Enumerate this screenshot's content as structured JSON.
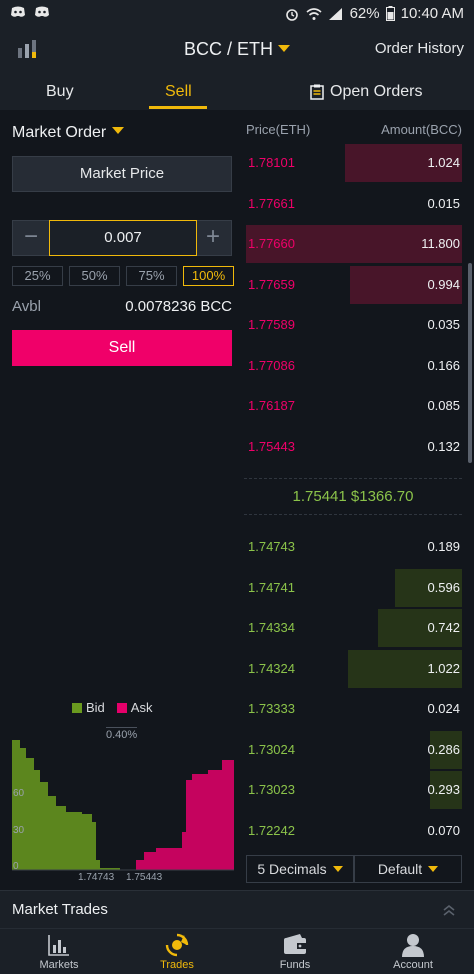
{
  "statusbar": {
    "battery": "62%",
    "time": "10:40 AM"
  },
  "header": {
    "pair": "BCC / ETH",
    "order_history": "Order History"
  },
  "tabs": {
    "buy": "Buy",
    "sell": "Sell",
    "open_orders": "Open Orders"
  },
  "form": {
    "order_type": "Market Order",
    "price_label": "Market Price",
    "quantity": "0.007",
    "percents": [
      "25%",
      "50%",
      "75%",
      "100%"
    ],
    "selected_percent": "100%",
    "avbl_label": "Avbl",
    "avbl_value": "0.0078236 BCC",
    "sell_button": "Sell"
  },
  "orderbook": {
    "price_header": "Price(ETH)",
    "amount_header": "Amount(BCC)",
    "asks": [
      {
        "price": "1.78101",
        "amount": "1.024"
      },
      {
        "price": "1.77661",
        "amount": "0.015"
      },
      {
        "price": "1.77660",
        "amount": "11.800"
      },
      {
        "price": "1.77659",
        "amount": "0.994"
      },
      {
        "price": "1.77589",
        "amount": "0.035"
      },
      {
        "price": "1.77086",
        "amount": "0.166"
      },
      {
        "price": "1.76187",
        "amount": "0.085"
      },
      {
        "price": "1.75443",
        "amount": "0.132"
      }
    ],
    "ask_bar_fraction": [
      0.54,
      0.0,
      1.0,
      0.52,
      0.0,
      0.0,
      0.0,
      0.0
    ],
    "last_price": "1.75441",
    "last_price_usd": "$1366.70",
    "bids": [
      {
        "price": "1.74743",
        "amount": "0.189"
      },
      {
        "price": "1.74741",
        "amount": "0.596"
      },
      {
        "price": "1.74334",
        "amount": "0.742"
      },
      {
        "price": "1.74324",
        "amount": "1.022"
      },
      {
        "price": "1.73333",
        "amount": "0.024"
      },
      {
        "price": "1.73024",
        "amount": "0.286"
      },
      {
        "price": "1.73023",
        "amount": "0.293"
      },
      {
        "price": "1.72242",
        "amount": "0.070"
      }
    ],
    "bid_bar_fraction": [
      0.0,
      0.31,
      0.39,
      0.53,
      0.0,
      0.15,
      0.15,
      0.0
    ],
    "decimals": "5 Decimals",
    "mode": "Default"
  },
  "depth_chart": {
    "legend_bid": "Bid",
    "legend_ask": "Ask",
    "spread": "0.40%",
    "y_ticks": [
      "60",
      "30",
      "0"
    ],
    "x_ticks": [
      "1.74743",
      "1.75443"
    ],
    "bid_color": "#6a9a1f",
    "ask_color": "#e5006a"
  },
  "market_trades": "Market Trades",
  "nav": {
    "markets": "Markets",
    "trades": "Trades",
    "funds": "Funds",
    "account": "Account"
  }
}
